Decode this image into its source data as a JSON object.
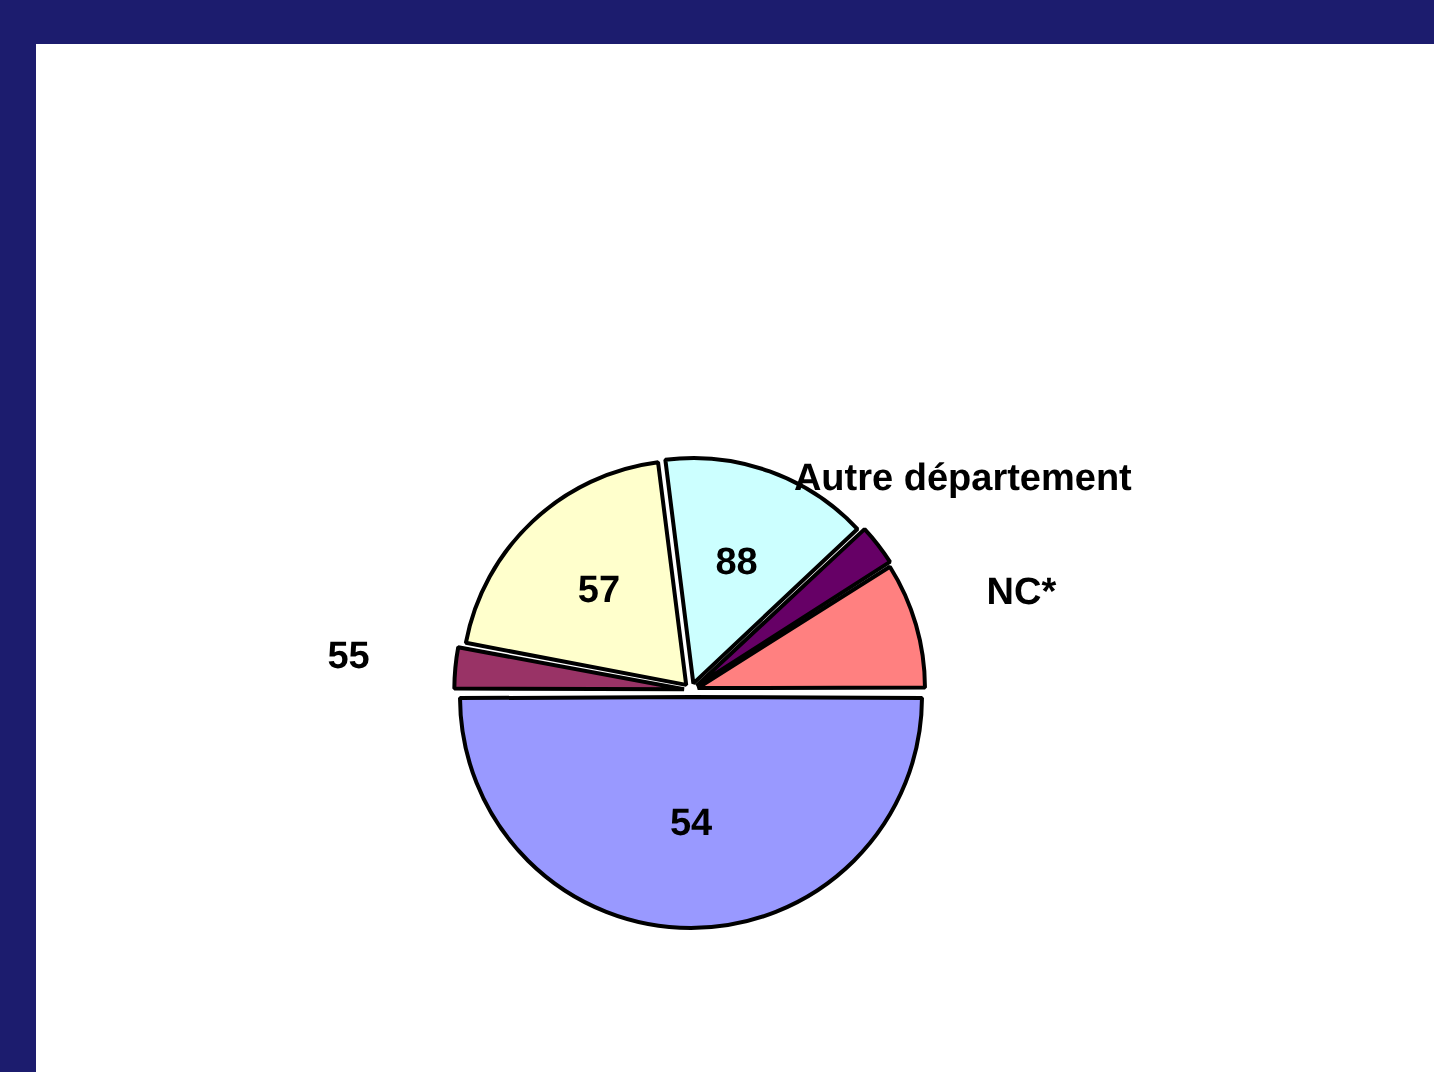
{
  "chart_data": {
    "type": "pie",
    "categories": [
      "54",
      "55",
      "57",
      "88",
      "Autre département",
      "NC*"
    ],
    "values": [
      50,
      3,
      20,
      15,
      3,
      9
    ],
    "colors": [
      "#9999ff",
      "#993366",
      "#ffffcc",
      "#ccffff",
      "#660066",
      "#ff8080"
    ],
    "legend": false
  }
}
